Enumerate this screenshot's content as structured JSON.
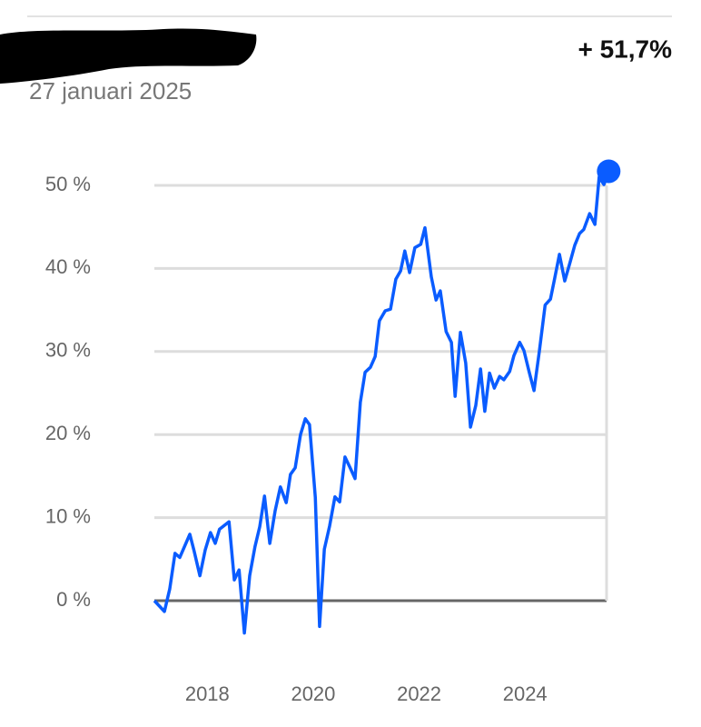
{
  "chart_data": {
    "type": "line",
    "annotation": "+ 51,7%",
    "subtitle": "27 januari 2025",
    "color": "#0a5cff",
    "grid": true,
    "x": [
      2017.0,
      2017.19,
      2017.29,
      2017.39,
      2017.48,
      2017.67,
      2017.75,
      2017.86,
      2017.96,
      2018.06,
      2018.15,
      2018.23,
      2018.41,
      2018.51,
      2018.6,
      2018.7,
      2018.8,
      2018.9,
      2018.99,
      2019.08,
      2019.18,
      2019.28,
      2019.38,
      2019.49,
      2019.57,
      2019.66,
      2019.76,
      2019.85,
      2019.93,
      2020.04,
      2020.12,
      2020.21,
      2020.31,
      2020.41,
      2020.5,
      2020.6,
      2020.69,
      2020.79,
      2020.89,
      2020.98,
      2021.08,
      2021.17,
      2021.25,
      2021.36,
      2021.46,
      2021.56,
      2021.65,
      2021.73,
      2021.82,
      2021.92,
      2022.03,
      2022.11,
      2022.23,
      2022.32,
      2022.4,
      2022.51,
      2022.61,
      2022.68,
      2022.78,
      2022.88,
      2022.97,
      2023.07,
      2023.16,
      2023.24,
      2023.33,
      2023.42,
      2023.52,
      2023.6,
      2023.71,
      2023.79,
      2023.9,
      2023.98,
      2024.08,
      2024.17,
      2024.27,
      2024.38,
      2024.48,
      2024.56,
      2024.65,
      2024.75,
      2024.84,
      2024.94,
      2025.03,
      2025.11,
      2025.22,
      2025.32,
      2025.4,
      2025.49,
      2025.58
    ],
    "values": [
      0,
      -1.3,
      1.4,
      5.7,
      5.2,
      8.0,
      6.0,
      3.0,
      6.1,
      8.2,
      6.9,
      8.6,
      9.5,
      2.5,
      3.7,
      -3.9,
      3.0,
      6.5,
      8.9,
      12.6,
      6.9,
      10.8,
      13.7,
      11.8,
      15.2,
      16.0,
      20.0,
      21.9,
      21.2,
      12.4,
      -3.1,
      6.2,
      9.0,
      12.5,
      11.9,
      17.3,
      16.1,
      14.7,
      23.9,
      27.5,
      28.1,
      29.4,
      33.7,
      34.9,
      35.1,
      38.7,
      39.7,
      42.1,
      39.5,
      42.5,
      42.9,
      44.9,
      39.0,
      36.2,
      37.3,
      32.4,
      31.1,
      24.6,
      32.3,
      28.6,
      20.9,
      23.5,
      27.9,
      22.8,
      27.4,
      25.6,
      27.0,
      26.6,
      27.6,
      29.5,
      31.1,
      30.1,
      27.5,
      25.3,
      30.0,
      35.6,
      36.3,
      38.8,
      41.7,
      38.5,
      40.5,
      42.8,
      44.2,
      44.7,
      46.6,
      45.3,
      51.0,
      50.1,
      51.7
    ],
    "xlim": [
      2017,
      2025.54
    ],
    "xticks": [
      2018,
      2020,
      2022,
      2024
    ],
    "ylim": [
      -5,
      55
    ],
    "yticks": [
      {
        "value": 0,
        "label": "0 %"
      },
      {
        "value": 10,
        "label": "10 %"
      },
      {
        "value": 20,
        "label": "20 %"
      },
      {
        "value": 30,
        "label": "30 %"
      },
      {
        "value": 40,
        "label": "40 %"
      },
      {
        "value": 50,
        "label": "50 %"
      }
    ]
  }
}
